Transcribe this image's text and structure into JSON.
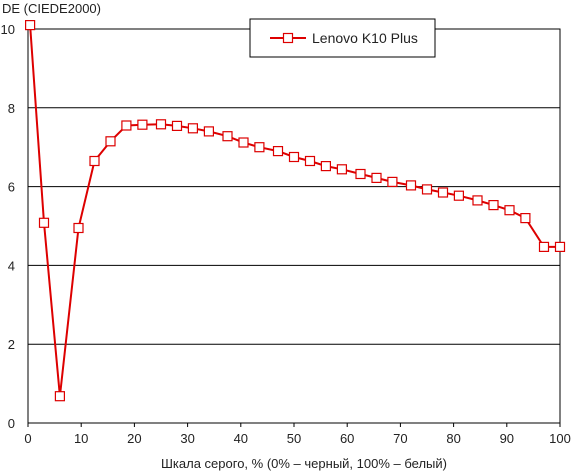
{
  "chart_data": {
    "type": "line",
    "ylabel": "DE (CIEDE2000)",
    "xlabel": "Шкала серого, % (0% – черный, 100% – белый)",
    "xlim": [
      0,
      100
    ],
    "ylim": [
      0,
      10
    ],
    "xticks": [
      "0",
      "10",
      "20",
      "30",
      "40",
      "50",
      "60",
      "70",
      "80",
      "90",
      "100"
    ],
    "yticks": [
      "0",
      "2",
      "4",
      "6",
      "8",
      "10"
    ],
    "grid": "horizontal",
    "legend_position": "top-right",
    "series": [
      {
        "name": "Lenovo K10 Plus",
        "color": "#dd0000",
        "marker": "square",
        "x": [
          0.4,
          3,
          6,
          9.5,
          12.5,
          15.5,
          18.5,
          21.5,
          25,
          28,
          31,
          34,
          37.5,
          40.5,
          43.5,
          47,
          50,
          53,
          56,
          59,
          62.5,
          65.5,
          68.5,
          72,
          75,
          78,
          81,
          84.5,
          87.5,
          90.5,
          93.5,
          97,
          100
        ],
        "y": [
          10.1,
          5.08,
          0.68,
          4.95,
          6.65,
          7.15,
          7.55,
          7.57,
          7.58,
          7.54,
          7.48,
          7.4,
          7.28,
          7.12,
          7.0,
          6.9,
          6.75,
          6.65,
          6.52,
          6.44,
          6.32,
          6.22,
          6.12,
          6.03,
          5.93,
          5.85,
          5.77,
          5.65,
          5.53,
          5.4,
          5.2,
          4.47,
          4.47
        ]
      }
    ]
  }
}
